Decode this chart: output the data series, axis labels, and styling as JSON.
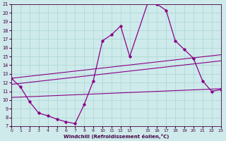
{
  "xlabel": "Windchill (Refroidissement éolien,°C)",
  "background_color": "#ceeaea",
  "grid_color": "#b0d8d8",
  "line_color": "#880088",
  "xmin": 0,
  "xmax": 23,
  "ymin": 7,
  "ymax": 21,
  "yticks": [
    7,
    8,
    9,
    10,
    11,
    12,
    13,
    14,
    15,
    16,
    17,
    18,
    19,
    20,
    21
  ],
  "xticks": [
    0,
    1,
    2,
    3,
    4,
    5,
    6,
    7,
    8,
    9,
    10,
    11,
    12,
    13,
    15,
    16,
    17,
    18,
    19,
    20,
    21,
    22,
    23
  ],
  "xtick_labels": [
    "0",
    "1",
    "2",
    "3",
    "4",
    "5",
    "6",
    "7",
    "8",
    "9",
    "10",
    "11",
    "12",
    "13",
    "15",
    "16",
    "17",
    "18",
    "19",
    "20",
    "21",
    "22",
    "23"
  ],
  "series": [
    {
      "x": [
        0,
        1,
        2,
        3,
        4,
        5,
        6,
        7,
        8,
        9,
        10,
        11,
        12,
        13,
        15,
        16,
        17,
        18,
        19,
        20,
        21,
        22,
        23
      ],
      "y": [
        12.5,
        11.5,
        9.8,
        8.5,
        8.2,
        7.8,
        7.5,
        7.3,
        9.5,
        12.2,
        16.8,
        17.5,
        18.5,
        15.0,
        21.2,
        21.0,
        20.3,
        16.8,
        15.8,
        14.8,
        12.2,
        11.0,
        11.2
      ],
      "has_markers": true
    },
    {
      "x": [
        0,
        23
      ],
      "y": [
        12.5,
        15.2
      ],
      "has_markers": false
    },
    {
      "x": [
        0,
        23
      ],
      "y": [
        11.8,
        14.5
      ],
      "has_markers": false
    },
    {
      "x": [
        0,
        23
      ],
      "y": [
        10.3,
        11.3
      ],
      "has_markers": false
    }
  ]
}
